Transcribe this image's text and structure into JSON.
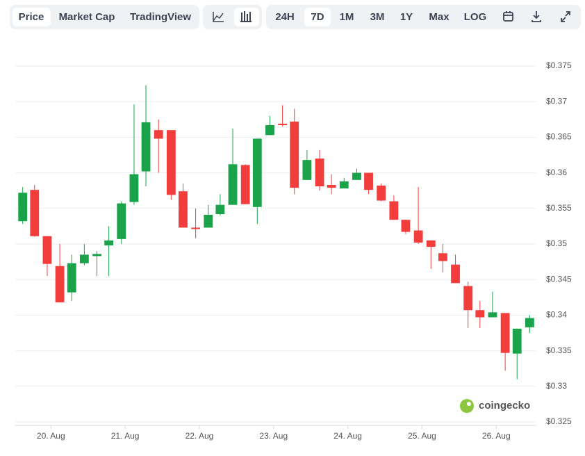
{
  "toolbar": {
    "views": [
      "Price",
      "Market Cap",
      "TradingView"
    ],
    "ranges": [
      "24H",
      "7D",
      "1M",
      "3M",
      "1Y",
      "Max"
    ],
    "scale": "LOG"
  },
  "watermark": "coingecko",
  "chart_data": {
    "type": "candlestick",
    "up_color": "#1aa34a",
    "down_color": "#f23d3d",
    "grid": true,
    "x": [
      19.62,
      19.78,
      19.95,
      20.12,
      20.28,
      20.45,
      20.62,
      20.78,
      20.95,
      21.12,
      21.28,
      21.45,
      21.62,
      21.78,
      21.95,
      22.12,
      22.28,
      22.45,
      22.62,
      22.78,
      22.95,
      23.12,
      23.28,
      23.45,
      23.62,
      23.78,
      23.95,
      24.12,
      24.28,
      24.45,
      24.62,
      24.78,
      24.95,
      25.12,
      25.28,
      25.45,
      25.62,
      25.78,
      25.95,
      26.12,
      26.28,
      26.45
    ],
    "open": [
      0.3532,
      0.3576,
      0.3511,
      0.3469,
      0.3432,
      0.3473,
      0.3483,
      0.3498,
      0.3507,
      0.3559,
      0.3602,
      0.366,
      0.366,
      0.3574,
      0.3523,
      0.3523,
      0.3542,
      0.3555,
      0.3611,
      0.3552,
      0.3653,
      0.3669,
      0.3672,
      0.359,
      0.362,
      0.3583,
      0.3578,
      0.359,
      0.36,
      0.3582,
      0.356,
      0.3534,
      0.3519,
      0.3505,
      0.3487,
      0.3471,
      0.3441,
      0.3407,
      0.3397,
      0.3403,
      0.3346,
      0.3383
    ],
    "high": [
      0.358,
      0.3583,
      0.3511,
      0.35,
      0.3485,
      0.35,
      0.349,
      0.3525,
      0.356,
      0.3696,
      0.3723,
      0.3675,
      0.366,
      0.3585,
      0.355,
      0.3555,
      0.357,
      0.3662,
      0.3612,
      0.3648,
      0.368,
      0.3695,
      0.369,
      0.3632,
      0.3632,
      0.3598,
      0.3593,
      0.3606,
      0.36,
      0.3585,
      0.3568,
      0.3534,
      0.358,
      0.3505,
      0.35,
      0.3485,
      0.3447,
      0.342,
      0.3433,
      0.3403,
      0.3381,
      0.34
    ],
    "low": [
      0.3528,
      0.351,
      0.3455,
      0.3418,
      0.342,
      0.347,
      0.3455,
      0.3455,
      0.35,
      0.3555,
      0.3581,
      0.36,
      0.3562,
      0.3523,
      0.3508,
      0.3523,
      0.354,
      0.3555,
      0.3556,
      0.3528,
      0.3653,
      0.3665,
      0.357,
      0.359,
      0.3575,
      0.357,
      0.3578,
      0.359,
      0.357,
      0.356,
      0.3534,
      0.3514,
      0.35,
      0.3465,
      0.346,
      0.3445,
      0.3382,
      0.3382,
      0.3397,
      0.3322,
      0.331,
      0.3375
    ],
    "close": [
      0.3572,
      0.3511,
      0.3472,
      0.3418,
      0.3473,
      0.3485,
      0.3486,
      0.3505,
      0.3557,
      0.3598,
      0.3671,
      0.3648,
      0.3569,
      0.3523,
      0.3521,
      0.3541,
      0.3555,
      0.3612,
      0.3556,
      0.3648,
      0.3667,
      0.3667,
      0.3579,
      0.3618,
      0.3581,
      0.3579,
      0.3588,
      0.36,
      0.3576,
      0.3561,
      0.3534,
      0.3517,
      0.3502,
      0.3496,
      0.3476,
      0.3445,
      0.3407,
      0.3397,
      0.3404,
      0.3347,
      0.3381,
      0.3396
    ],
    "xlim": [
      19.52,
      26.54
    ],
    "xticks": [
      {
        "value": 20,
        "label": "20. Aug"
      },
      {
        "value": 21,
        "label": "21. Aug"
      },
      {
        "value": 22,
        "label": "22. Aug"
      },
      {
        "value": 23,
        "label": "23. Aug"
      },
      {
        "value": 24,
        "label": "24. Aug"
      },
      {
        "value": 25,
        "label": "25. Aug"
      },
      {
        "value": 26,
        "label": "26. Aug"
      }
    ],
    "ylim": [
      0.325,
      0.375
    ],
    "yticks": [
      {
        "value": 0.325,
        "label": "$0.325"
      },
      {
        "value": 0.33,
        "label": "$0.33"
      },
      {
        "value": 0.335,
        "label": "$0.335"
      },
      {
        "value": 0.34,
        "label": "$0.34"
      },
      {
        "value": 0.345,
        "label": "$0.345"
      },
      {
        "value": 0.35,
        "label": "$0.35"
      },
      {
        "value": 0.355,
        "label": "$0.355"
      },
      {
        "value": 0.36,
        "label": "$0.36"
      },
      {
        "value": 0.365,
        "label": "$0.365"
      },
      {
        "value": 0.37,
        "label": "$0.37"
      },
      {
        "value": 0.375,
        "label": "$0.375"
      }
    ]
  }
}
